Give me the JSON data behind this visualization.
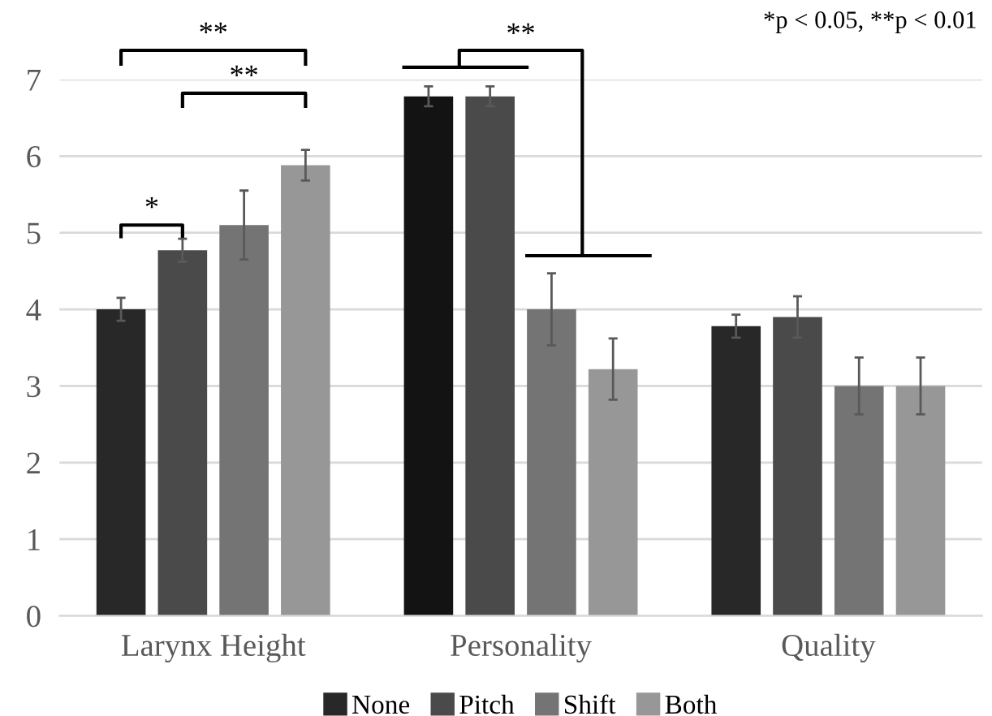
{
  "chart_data": {
    "type": "bar",
    "categories": [
      "Larynx Height",
      "Personality",
      "Quality"
    ],
    "series": [
      {
        "name": "None",
        "color": "#282828",
        "colors": [
          "#282828",
          "#131313",
          "#282828"
        ],
        "values": [
          4.0,
          6.78,
          3.78
        ],
        "errors": [
          0.15,
          0.13,
          0.15
        ]
      },
      {
        "name": "Pitch",
        "color": "#4a4a4a",
        "values": [
          4.77,
          6.78,
          3.9
        ],
        "errors": [
          0.15,
          0.13,
          0.27
        ]
      },
      {
        "name": "Shift",
        "color": "#747474",
        "values": [
          5.1,
          4.0,
          3.0
        ],
        "errors": [
          0.45,
          0.47,
          0.37
        ]
      },
      {
        "name": "Both",
        "color": "#979797",
        "values": [
          5.88,
          3.22,
          3.0
        ],
        "errors": [
          0.2,
          0.4,
          0.37
        ]
      }
    ],
    "ylim": [
      0,
      7
    ],
    "yticks": [
      0,
      1,
      2,
      3,
      4,
      5,
      6,
      7
    ],
    "grid": "y",
    "legend": "bottom",
    "annotations": [
      "*",
      "**",
      "**",
      "**",
      "*p < 0.05, **p < 0.01"
    ]
  }
}
